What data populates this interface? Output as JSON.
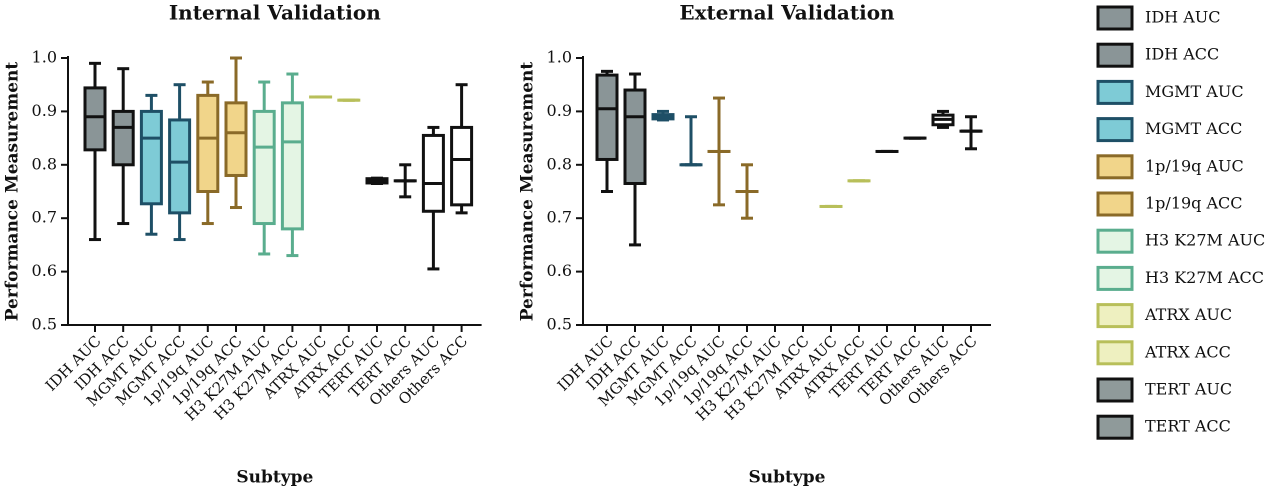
{
  "chart_data": [
    {
      "type": "box",
      "title": "Internal Validation",
      "x_label": "Subtype",
      "y_label": "Performance Measurement",
      "categories": [
        "IDH AUC",
        "IDH ACC",
        "MGMT AUC",
        "MGMT ACC",
        "1p/19q AUC",
        "1p/19q ACC",
        "H3 K27M AUC",
        "H3 K27M ACC",
        "ATRX AUC",
        "ATRX ACC",
        "TERT AUC",
        "TERT ACC",
        "Others AUC",
        "Others ACC"
      ],
      "fills": [
        "#8a9597",
        "#8a9597",
        "#7ecbd6",
        "#7ecbd6",
        "#f1d58a",
        "#f1d58a",
        "#e4f5e4",
        "#e4f5e4",
        "#eef0c0",
        "#eef0c0",
        "#8f9a9a",
        "#8f9a9a",
        "#ffffff",
        "#ffffff"
      ],
      "strokes": [
        "#111111",
        "#111111",
        "#1e4f66",
        "#1e4f66",
        "#8a6a28",
        "#8a6a28",
        "#5aad8e",
        "#5aad8e",
        "#b8bf5a",
        "#b8bf5a",
        "#111111",
        "#111111",
        "#111111",
        "#111111"
      ],
      "boxes": [
        {
          "min": 0.66,
          "q1": 0.828,
          "median": 0.89,
          "q3": 0.944,
          "max": 0.99
        },
        {
          "min": 0.69,
          "q1": 0.8,
          "median": 0.87,
          "q3": 0.9,
          "max": 0.98
        },
        {
          "min": 0.67,
          "q1": 0.727,
          "median": 0.85,
          "q3": 0.9,
          "max": 0.93
        },
        {
          "min": 0.66,
          "q1": 0.71,
          "median": 0.805,
          "q3": 0.884,
          "max": 0.95
        },
        {
          "min": 0.69,
          "q1": 0.75,
          "median": 0.85,
          "q3": 0.93,
          "max": 0.955
        },
        {
          "min": 0.72,
          "q1": 0.78,
          "median": 0.86,
          "q3": 0.916,
          "max": 1.0
        },
        {
          "min": 0.633,
          "q1": 0.69,
          "median": 0.833,
          "q3": 0.9,
          "max": 0.955
        },
        {
          "min": 0.63,
          "q1": 0.68,
          "median": 0.843,
          "q3": 0.916,
          "max": 0.97
        },
        {
          "min": 0.927,
          "q1": 0.927,
          "median": 0.927,
          "q3": 0.927,
          "max": 0.927
        },
        {
          "min": 0.921,
          "q1": 0.921,
          "median": 0.921,
          "q3": 0.921,
          "max": 0.921
        },
        {
          "min": 0.765,
          "q1": 0.766,
          "median": 0.77,
          "q3": 0.774,
          "max": 0.775
        },
        {
          "min": 0.74,
          "q1": 0.77,
          "median": 0.77,
          "q3": 0.77,
          "max": 0.8
        },
        {
          "min": 0.605,
          "q1": 0.713,
          "median": 0.765,
          "q3": 0.855,
          "max": 0.87
        },
        {
          "min": 0.71,
          "q1": 0.725,
          "median": 0.81,
          "q3": 0.87,
          "max": 0.95
        }
      ],
      "ylim": [
        0.5,
        1.0
      ],
      "yticks": [
        0.5,
        0.6,
        0.7,
        0.8,
        0.9,
        {
          "value": 1.0,
          "label": "1.0"
        }
      ]
    },
    {
      "type": "box",
      "title": "External Validation",
      "x_label": "Subtype",
      "y_label": "Performance Measurement",
      "categories": [
        "IDH AUC",
        "IDH ACC",
        "MGMT AUC",
        "MGMT ACC",
        "1p/19q AUC",
        "1p/19q ACC",
        "H3 K27M AUC",
        "H3 K27M ACC",
        "ATRX AUC",
        "ATRX ACC",
        "TERT AUC",
        "TERT ACC",
        "Others AUC",
        "Others ACC"
      ],
      "fills": [
        "#8a9597",
        "#8a9597",
        "#7ecbd6",
        "#7ecbd6",
        "#f1d58a",
        "#f1d58a",
        "#e4f5e4",
        "#e4f5e4",
        "#eef0c0",
        "#eef0c0",
        "#8f9a9a",
        "#8f9a9a",
        "#ffffff",
        "#ffffff"
      ],
      "strokes": [
        "#111111",
        "#111111",
        "#1e4f66",
        "#1e4f66",
        "#8a6a28",
        "#8a6a28",
        "#5aad8e",
        "#5aad8e",
        "#b8bf5a",
        "#b8bf5a",
        "#111111",
        "#111111",
        "#111111",
        "#111111"
      ],
      "boxes": [
        {
          "min": 0.75,
          "q1": 0.81,
          "median": 0.905,
          "q3": 0.968,
          "max": 0.975
        },
        {
          "min": 0.65,
          "q1": 0.765,
          "median": 0.89,
          "q3": 0.94,
          "max": 0.97
        },
        {
          "min": 0.884,
          "q1": 0.886,
          "median": 0.89,
          "q3": 0.894,
          "max": 0.9
        },
        {
          "min": 0.8,
          "q1": 0.8,
          "median": 0.8,
          "q3": 0.8,
          "max": 0.89
        },
        {
          "min": 0.725,
          "q1": 0.825,
          "median": 0.825,
          "q3": 0.825,
          "max": 0.925
        },
        {
          "min": 0.7,
          "q1": 0.75,
          "median": 0.75,
          "q3": 0.75,
          "max": 0.8
        },
        null,
        null,
        {
          "min": 0.722,
          "q1": 0.722,
          "median": 0.722,
          "q3": 0.722,
          "max": 0.722
        },
        {
          "min": 0.77,
          "q1": 0.77,
          "median": 0.77,
          "q3": 0.77,
          "max": 0.77
        },
        {
          "min": 0.825,
          "q1": 0.825,
          "median": 0.825,
          "q3": 0.825,
          "max": 0.825
        },
        {
          "min": 0.85,
          "q1": 0.85,
          "median": 0.85,
          "q3": 0.85,
          "max": 0.85
        },
        {
          "min": 0.87,
          "q1": 0.875,
          "median": 0.885,
          "q3": 0.893,
          "max": 0.9
        },
        {
          "min": 0.83,
          "q1": 0.863,
          "median": 0.863,
          "q3": 0.863,
          "max": 0.89
        }
      ],
      "ylim": [
        0.5,
        1.0
      ],
      "yticks": [
        0.5,
        0.6,
        0.7,
        0.8,
        0.9,
        {
          "value": 1.0,
          "label": "1.0"
        }
      ]
    }
  ],
  "legend": [
    {
      "name": "IDH AUC",
      "fill": "#8a9597",
      "stroke": "#111111"
    },
    {
      "name": "IDH ACC",
      "fill": "#8a9597",
      "stroke": "#111111"
    },
    {
      "name": "MGMT AUC",
      "fill": "#7ecbd6",
      "stroke": "#1e4f66"
    },
    {
      "name": "MGMT ACC",
      "fill": "#7ecbd6",
      "stroke": "#1e4f66"
    },
    {
      "name": "1p/19q AUC",
      "fill": "#f1d58a",
      "stroke": "#8a6a28"
    },
    {
      "name": "1p/19q ACC",
      "fill": "#f1d58a",
      "stroke": "#8a6a28"
    },
    {
      "name": "H3 K27M AUC",
      "fill": "#e4f5e4",
      "stroke": "#5aad8e"
    },
    {
      "name": "H3 K27M ACC",
      "fill": "#e4f5e4",
      "stroke": "#5aad8e"
    },
    {
      "name": "ATRX AUC",
      "fill": "#eef0c0",
      "stroke": "#b8bf5a"
    },
    {
      "name": "ATRX ACC",
      "fill": "#eef0c0",
      "stroke": "#b8bf5a"
    },
    {
      "name": "TERT AUC",
      "fill": "#8f9a9a",
      "stroke": "#111111"
    },
    {
      "name": "TERT ACC",
      "fill": "#8f9a9a",
      "stroke": "#111111"
    }
  ]
}
